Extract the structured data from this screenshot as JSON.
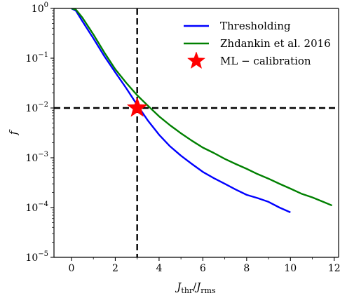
{
  "chart_data": {
    "type": "line",
    "xlabel": "J_thr/J_rms",
    "ylabel": "f",
    "xlim": [
      -0.8,
      12.2
    ],
    "ylim": [
      1e-05,
      1
    ],
    "yscale": "log",
    "grid": false,
    "legend_placement": "top-right",
    "x_ticks": [
      "0",
      "2",
      "4",
      "6",
      "8",
      "10",
      "12"
    ],
    "x_tick_values": [
      0,
      2,
      4,
      6,
      8,
      10,
      12
    ],
    "y_ticks": [
      "10^0",
      "10^-1",
      "10^-2",
      "10^-3",
      "10^-4",
      "10^-5"
    ],
    "y_tick_values": [
      1,
      0.1,
      0.01,
      0.001,
      0.0001,
      1e-05
    ],
    "reference_lines": {
      "vertical_x": 3.0,
      "horizontal_y": 0.01
    },
    "series": [
      {
        "name": "Thresholding",
        "color": "#0000ff",
        "x": [
          0,
          0.2,
          0.5,
          1.0,
          1.5,
          2.0,
          2.5,
          3.0,
          3.5,
          4.0,
          4.5,
          5.0,
          5.5,
          6.0,
          6.5,
          7.0,
          7.5,
          8.0,
          8.5,
          9.0,
          9.5,
          10.0
        ],
        "y": [
          1.0,
          0.9,
          0.55,
          0.25,
          0.11,
          0.052,
          0.025,
          0.0115,
          0.0055,
          0.0029,
          0.0017,
          0.0011,
          0.00075,
          0.00052,
          0.00039,
          0.0003,
          0.00023,
          0.00018,
          0.000155,
          0.00013,
          0.0001,
          8e-05
        ]
      },
      {
        "name": "Zhdankin et al. 2016",
        "color": "#008000",
        "x": [
          0,
          0.2,
          0.5,
          1.0,
          1.5,
          2.0,
          2.5,
          3.0,
          3.5,
          4.0,
          4.5,
          5.0,
          5.5,
          6.0,
          6.5,
          7.0,
          7.5,
          8.0,
          8.5,
          9.0,
          9.5,
          10.0,
          10.5,
          11.0,
          11.5,
          11.9
        ],
        "y": [
          1.0,
          0.95,
          0.65,
          0.3,
          0.13,
          0.06,
          0.032,
          0.018,
          0.011,
          0.0068,
          0.0045,
          0.0031,
          0.0022,
          0.0016,
          0.00125,
          0.00095,
          0.00075,
          0.0006,
          0.00047,
          0.00038,
          0.0003,
          0.00024,
          0.00019,
          0.00016,
          0.00013,
          0.00011
        ]
      }
    ],
    "marker": {
      "name": "ML − calibration",
      "x": 3.0,
      "y": 0.01,
      "color": "#ff0000",
      "symbol": "star"
    }
  }
}
